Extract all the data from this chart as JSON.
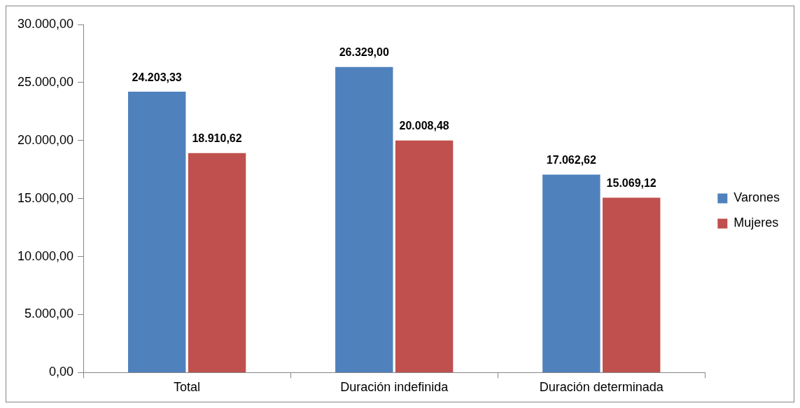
{
  "chart_data": {
    "type": "bar",
    "categories": [
      "Total",
      "Duración indefinida",
      "Duración determinada"
    ],
    "series": [
      {
        "name": "Varones",
        "color": "#4f81bd",
        "values": [
          24203.33,
          26329.0,
          17062.62
        ],
        "value_labels": [
          "24.203,33",
          "26.329,00",
          "17.062,62"
        ]
      },
      {
        "name": "Mujeres",
        "color": "#c0504d",
        "values": [
          18910.62,
          20008.48,
          15069.12
        ],
        "value_labels": [
          "18.910,62",
          "20.008,48",
          "15.069,12"
        ]
      }
    ],
    "ylim": [
      0,
      30000
    ],
    "yticks": [
      {
        "value": 0,
        "label": "0,00"
      },
      {
        "value": 5000,
        "label": "5.000,00"
      },
      {
        "value": 10000,
        "label": "10.000,00"
      },
      {
        "value": 15000,
        "label": "15.000,00"
      },
      {
        "value": 20000,
        "label": "20.000,00"
      },
      {
        "value": 25000,
        "label": "25.000,00"
      },
      {
        "value": 30000,
        "label": "30.000,00"
      }
    ],
    "grid": false,
    "legend": "right"
  }
}
